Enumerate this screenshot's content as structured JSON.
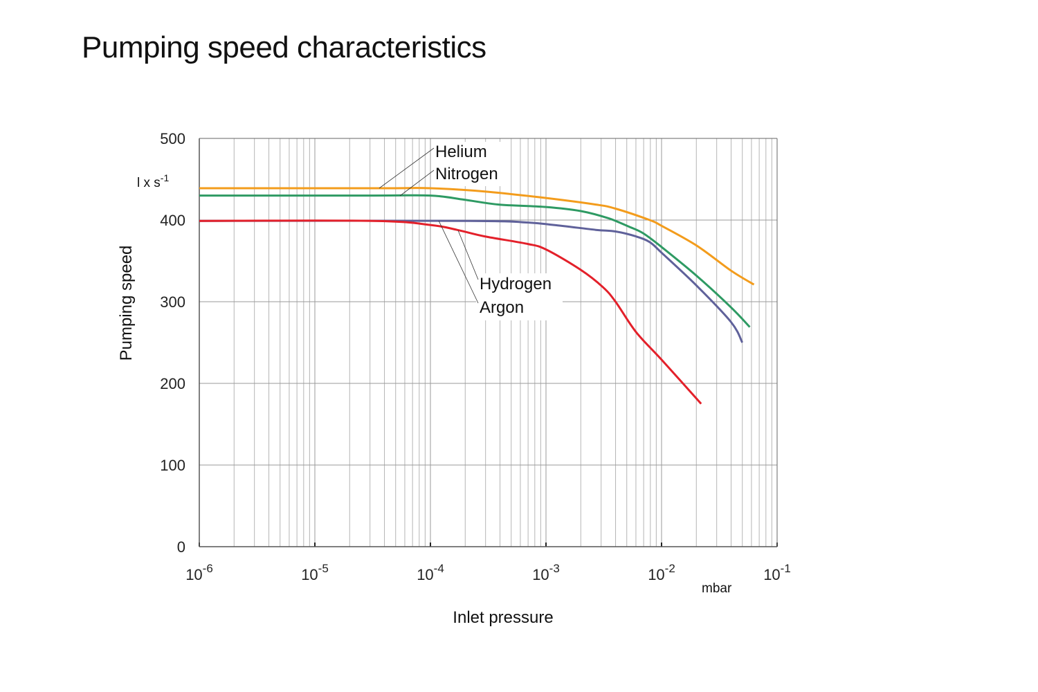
{
  "page": {
    "title": "Pumping speed characteristics"
  },
  "chart_data": {
    "type": "line",
    "title": "Pumping speed characteristics",
    "xlabel": "Inlet pressure",
    "xunit": "mbar",
    "ylabel": "Pumping speed",
    "yunit": "l x s-1",
    "xscale": "log",
    "xlim": [
      1e-06,
      0.1
    ],
    "ylim": [
      0,
      500
    ],
    "grid": true,
    "x_ticks": [
      {
        "value": 1e-06,
        "base": "10",
        "exp": "-6"
      },
      {
        "value": 1e-05,
        "base": "10",
        "exp": "-5"
      },
      {
        "value": 0.0001,
        "base": "10",
        "exp": "-4"
      },
      {
        "value": 0.001,
        "base": "10",
        "exp": "-3"
      },
      {
        "value": 0.01,
        "base": "10",
        "exp": "-2"
      },
      {
        "value": 0.1,
        "base": "10",
        "exp": "-1"
      }
    ],
    "y_ticks": [
      {
        "value": 0,
        "label": "0"
      },
      {
        "value": 100,
        "label": "100"
      },
      {
        "value": 200,
        "label": "200"
      },
      {
        "value": 300,
        "label": "300"
      },
      {
        "value": 400,
        "label": "400"
      },
      {
        "value": 500,
        "label": "500"
      }
    ],
    "series": [
      {
        "name": "Helium",
        "color": "#f39c1c",
        "x": [
          1e-06,
          3.6e-05,
          0.0001,
          0.000295,
          0.001,
          0.0027,
          0.004,
          0.0079,
          0.01,
          0.02,
          0.04,
          0.063
        ],
        "y": [
          439,
          439,
          439,
          435,
          427,
          419,
          414,
          400,
          393,
          369,
          338,
          321
        ]
      },
      {
        "name": "Nitrogen",
        "color": "#2e9a63",
        "x": [
          1e-06,
          3.2e-05,
          0.0001,
          0.000195,
          0.00039,
          0.001,
          0.002,
          0.0035,
          0.0052,
          0.0069,
          0.01,
          0.02,
          0.04,
          0.058
        ],
        "y": [
          430,
          430,
          430,
          425,
          419,
          416,
          411,
          402,
          392,
          384,
          367,
          332,
          293,
          269
        ]
      },
      {
        "name": "Argon",
        "color": "#5f619a",
        "x": [
          1e-06,
          0.00022,
          0.00068,
          0.00117,
          0.0027,
          0.004,
          0.006,
          0.0079,
          0.01,
          0.02,
          0.04,
          0.05
        ],
        "y": [
          399,
          399,
          397,
          394,
          388,
          386,
          380,
          373,
          360,
          320,
          275,
          250
        ]
      },
      {
        "name": "Hydrogen",
        "color": "#e3202a",
        "x": [
          1e-06,
          3.2e-05,
          0.0001,
          0.00017,
          0.000295,
          0.00068,
          0.001,
          0.002,
          0.0031,
          0.004,
          0.006,
          0.01,
          0.022
        ],
        "y": [
          399,
          399,
          394,
          388,
          380,
          371,
          364,
          339,
          318,
          300,
          263,
          229,
          175
        ]
      }
    ],
    "annotations": [
      {
        "text": "Helium",
        "series": "Helium"
      },
      {
        "text": "Nitrogen",
        "series": "Nitrogen"
      },
      {
        "text": "Hydrogen",
        "series": "Hydrogen"
      },
      {
        "text": "Argon",
        "series": "Argon"
      }
    ]
  }
}
